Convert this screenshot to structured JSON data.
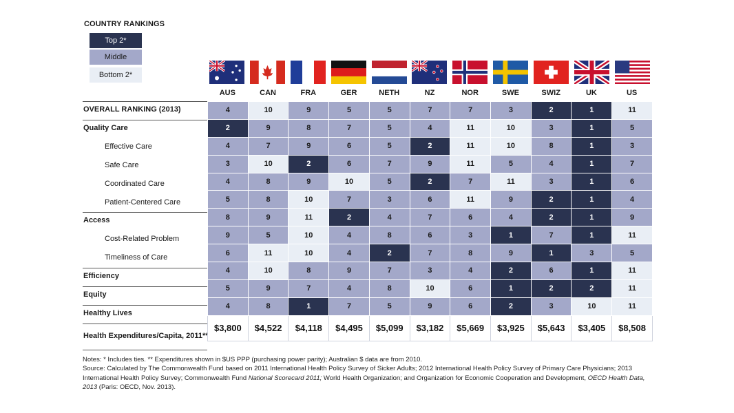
{
  "legend": {
    "title": "COUNTRY RANKINGS",
    "top": "Top 2*",
    "middle": "Middle",
    "bottom": "Bottom 2*"
  },
  "colors": {
    "top": "#2a3350",
    "middle": "#a3a8c9",
    "bottom": "#e9eef5"
  },
  "countries": [
    "AUS",
    "CAN",
    "FRA",
    "GER",
    "NETH",
    "NZ",
    "NOR",
    "SWE",
    "SWIZ",
    "UK",
    "US"
  ],
  "flags": [
    "australia-flag",
    "canada-flag",
    "france-flag",
    "germany-flag",
    "netherlands-flag",
    "new-zealand-flag",
    "norway-flag",
    "sweden-flag",
    "switzerland-flag",
    "uk-flag",
    "us-flag"
  ],
  "chart_data": {
    "type": "table",
    "title": "COUNTRY RANKINGS",
    "columns": [
      "AUS",
      "CAN",
      "FRA",
      "GER",
      "NETH",
      "NZ",
      "NOR",
      "SWE",
      "SWIZ",
      "UK",
      "US"
    ],
    "rows": [
      {
        "label": "OVERALL RANKING (2013)",
        "level": "main",
        "values": [
          4,
          10,
          9,
          5,
          5,
          7,
          7,
          3,
          2,
          1,
          11
        ]
      },
      {
        "label": "Quality Care",
        "level": "main",
        "values": [
          2,
          9,
          8,
          7,
          5,
          4,
          11,
          10,
          3,
          1,
          5
        ]
      },
      {
        "label": "Effective Care",
        "level": "sub",
        "values": [
          4,
          7,
          9,
          6,
          5,
          2,
          11,
          10,
          8,
          1,
          3
        ]
      },
      {
        "label": "Safe Care",
        "level": "sub",
        "values": [
          3,
          10,
          2,
          6,
          7,
          9,
          11,
          5,
          4,
          1,
          7
        ]
      },
      {
        "label": "Coordinated Care",
        "level": "sub",
        "values": [
          4,
          8,
          9,
          10,
          5,
          2,
          7,
          11,
          3,
          1,
          6
        ]
      },
      {
        "label": "Patient-Centered Care",
        "level": "sub",
        "values": [
          5,
          8,
          10,
          7,
          3,
          6,
          11,
          9,
          2,
          1,
          4
        ]
      },
      {
        "label": "Access",
        "level": "main",
        "values": [
          8,
          9,
          11,
          2,
          4,
          7,
          6,
          4,
          2,
          1,
          9
        ]
      },
      {
        "label": "Cost-Related Problem",
        "level": "sub",
        "values": [
          9,
          5,
          10,
          4,
          8,
          6,
          3,
          1,
          7,
          1,
          11
        ]
      },
      {
        "label": "Timeliness of Care",
        "level": "sub",
        "values": [
          6,
          11,
          10,
          4,
          2,
          7,
          8,
          9,
          1,
          3,
          5
        ]
      },
      {
        "label": "Efficiency",
        "level": "main",
        "values": [
          4,
          10,
          8,
          9,
          7,
          3,
          4,
          2,
          6,
          1,
          11
        ]
      },
      {
        "label": "Equity",
        "level": "main",
        "values": [
          5,
          9,
          7,
          4,
          8,
          10,
          6,
          1,
          2,
          2,
          11
        ]
      },
      {
        "label": "Healthy Lives",
        "level": "main",
        "values": [
          4,
          8,
          1,
          7,
          5,
          9,
          6,
          2,
          3,
          10,
          11
        ]
      }
    ],
    "tiers": [
      [
        "mid",
        "bot",
        "mid",
        "mid",
        "mid",
        "mid",
        "mid",
        "mid",
        "top",
        "top",
        "bot"
      ],
      [
        "top",
        "mid",
        "mid",
        "mid",
        "mid",
        "mid",
        "bot",
        "bot",
        "mid",
        "top",
        "mid"
      ],
      [
        "mid",
        "mid",
        "mid",
        "mid",
        "mid",
        "top",
        "bot",
        "bot",
        "mid",
        "top",
        "mid"
      ],
      [
        "mid",
        "bot",
        "top",
        "mid",
        "mid",
        "mid",
        "bot",
        "mid",
        "mid",
        "top",
        "mid"
      ],
      [
        "mid",
        "mid",
        "mid",
        "bot",
        "mid",
        "top",
        "mid",
        "bot",
        "mid",
        "top",
        "mid"
      ],
      [
        "mid",
        "mid",
        "bot",
        "mid",
        "mid",
        "mid",
        "bot",
        "mid",
        "top",
        "top",
        "mid"
      ],
      [
        "mid",
        "mid",
        "bot",
        "top",
        "mid",
        "mid",
        "mid",
        "mid",
        "top",
        "top",
        "mid"
      ],
      [
        "mid",
        "mid",
        "bot",
        "mid",
        "mid",
        "mid",
        "mid",
        "top",
        "mid",
        "top",
        "bot"
      ],
      [
        "mid",
        "bot",
        "bot",
        "mid",
        "top",
        "mid",
        "mid",
        "mid",
        "top",
        "mid",
        "mid"
      ],
      [
        "mid",
        "bot",
        "mid",
        "mid",
        "mid",
        "mid",
        "mid",
        "top",
        "mid",
        "top",
        "bot"
      ],
      [
        "mid",
        "mid",
        "mid",
        "mid",
        "mid",
        "bot",
        "mid",
        "top",
        "top",
        "top",
        "bot"
      ],
      [
        "mid",
        "mid",
        "top",
        "mid",
        "mid",
        "mid",
        "mid",
        "top",
        "mid",
        "bot",
        "bot"
      ]
    ],
    "expenditures": {
      "label": "Health Expenditures/Capita, 2011**",
      "values": [
        "$3,800",
        "$4,522",
        "$4,118",
        "$4,495",
        "$5,099",
        "$3,182",
        "$5,669",
        "$3,925",
        "$5,643",
        "$3,405",
        "$8,508"
      ]
    }
  },
  "notes": {
    "line1": "Notes: * Includes ties. ** Expenditures shown in $US PPP (purchasing power parity); Australian $ data are from 2010.",
    "line2a": "Source: Calculated by The Commonwealth Fund based on 2011 International Health Policy Survey of Sicker Adults; 2012 International Health Policy Survey of Primary Care Physicians; 2013 International Health Policy Survey; Commonwealth Fund ",
    "line2b": "National Scorecard 2011;",
    "line2c": " World Health Organization; and Organization for Economic Cooperation and Development, ",
    "line2d": "OECD Health Data, 2013",
    "line2e": " (Paris: OECD, Nov. 2013)."
  }
}
